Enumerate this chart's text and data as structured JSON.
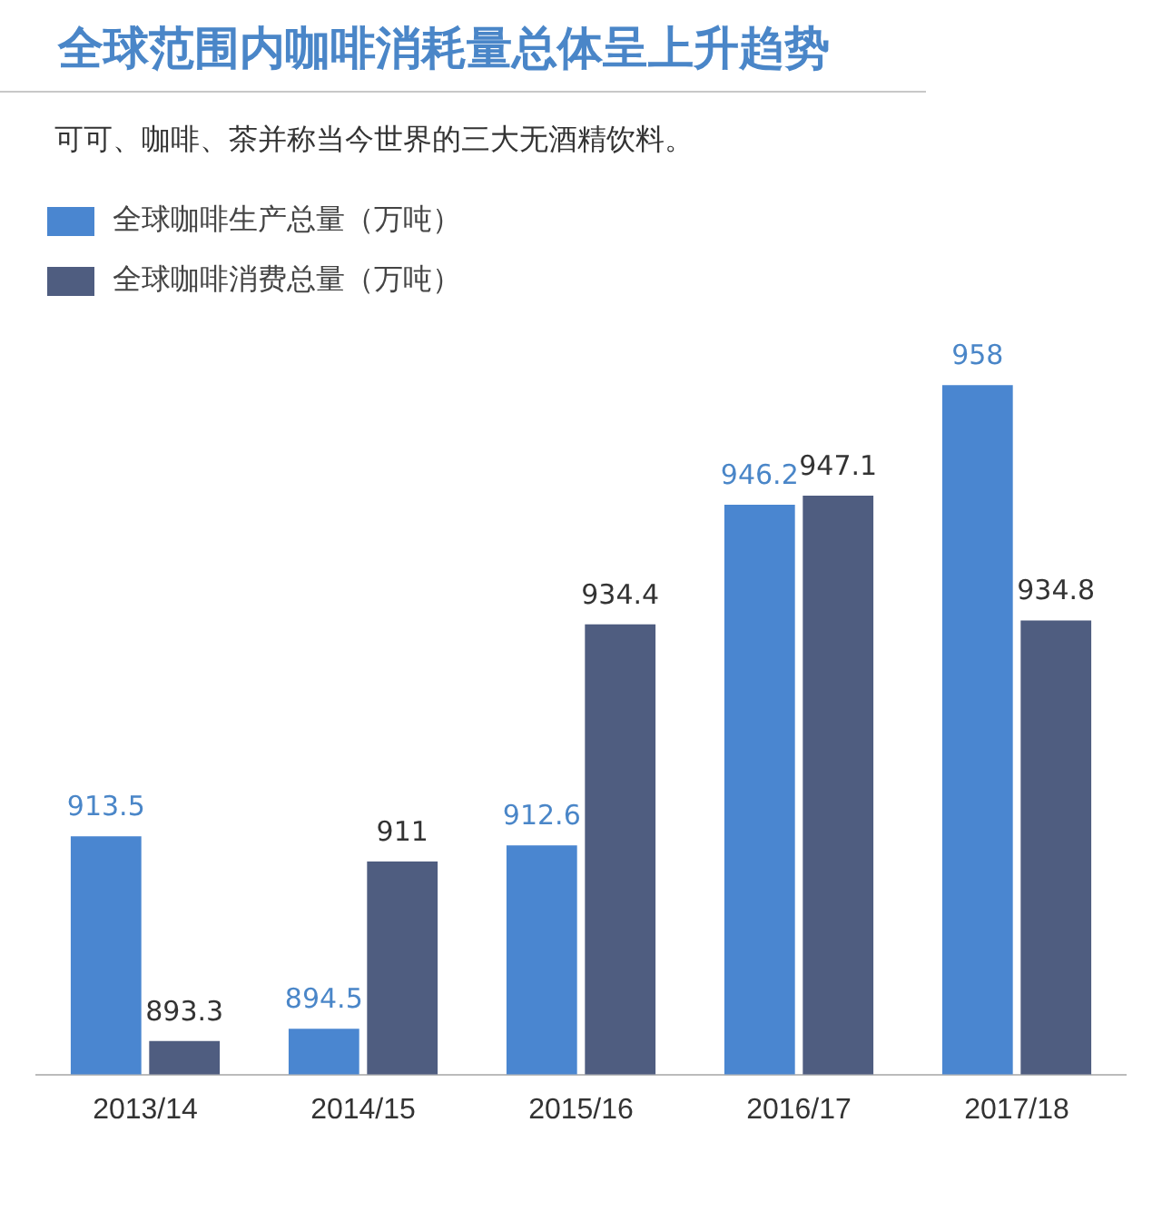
{
  "chart_data": {
    "type": "bar",
    "title": "全球范围内咖啡消耗量总体呈上升趋势",
    "subtitle": "可可、咖啡、茶并称当今世界的三大无酒精饮料。",
    "categories": [
      "2013/14",
      "2014/15",
      "2015/16",
      "2016/17",
      "2017/18"
    ],
    "series": [
      {
        "name": "全球咖啡生产总量（万吨）",
        "color": "#4a86d0",
        "values": [
          913.5,
          894.5,
          912.6,
          946.2,
          958
        ]
      },
      {
        "name": "全球咖啡消费总量（万吨）",
        "color": "#4f5d80",
        "values": [
          893.3,
          911,
          934.4,
          947.1,
          934.8
        ]
      }
    ],
    "tick_labels": "x",
    "grid": false,
    "legend": "top left",
    "data_labels": true
  }
}
